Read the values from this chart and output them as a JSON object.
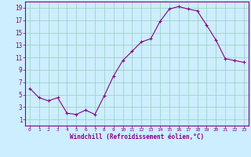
{
  "x": [
    0,
    1,
    2,
    3,
    4,
    5,
    6,
    7,
    8,
    9,
    10,
    11,
    12,
    13,
    14,
    15,
    16,
    17,
    18,
    19,
    20,
    21,
    22,
    23
  ],
  "y": [
    6.0,
    4.5,
    4.0,
    4.5,
    2.0,
    1.8,
    2.5,
    1.8,
    4.8,
    8.0,
    10.5,
    12.0,
    13.5,
    14.0,
    16.8,
    18.8,
    19.2,
    18.8,
    18.5,
    16.2,
    13.8,
    10.8,
    10.5,
    10.2
  ],
  "line_color": "#880088",
  "marker": "+",
  "marker_size": 3,
  "bg_color": "#cceeff",
  "grid_color": "#99ccbb",
  "xlabel": "Windchill (Refroidissement éolien,°C)",
  "xlabel_color": "#880088",
  "tick_color": "#880088",
  "xlim": [
    -0.5,
    23.5
  ],
  "ylim": [
    0,
    20
  ],
  "yticks": [
    1,
    3,
    5,
    7,
    9,
    11,
    13,
    15,
    17,
    19
  ],
  "xticks": [
    0,
    1,
    2,
    3,
    4,
    5,
    6,
    7,
    8,
    9,
    10,
    11,
    12,
    13,
    14,
    15,
    16,
    17,
    18,
    19,
    20,
    21,
    22,
    23
  ],
  "xtick_labels": [
    "0",
    "1",
    "2",
    "3",
    "4",
    "5",
    "6",
    "7",
    "8",
    "9",
    "10",
    "11",
    "12",
    "13",
    "14",
    "15",
    "16",
    "17",
    "18",
    "19",
    "20",
    "21",
    "22",
    "23"
  ]
}
